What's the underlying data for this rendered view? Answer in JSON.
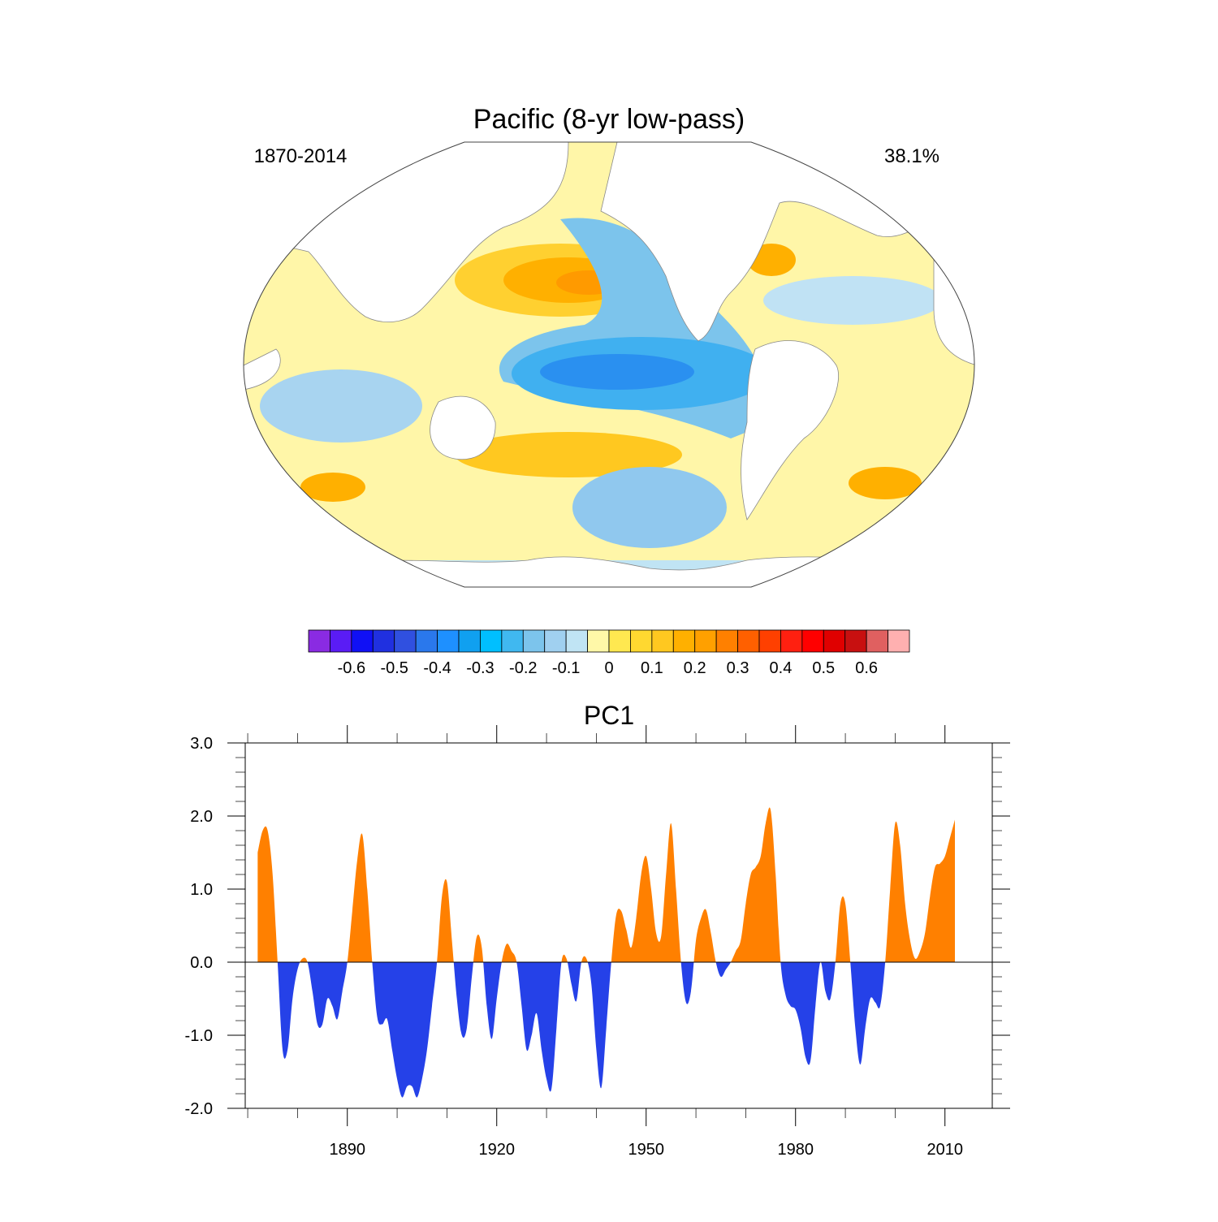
{
  "chart_data": [
    {
      "type": "map",
      "title": "Pacific (8-yr low-pass)",
      "subtitle_left": "1870-2014",
      "subtitle_right": "38.1%",
      "colorbar": {
        "lim": [
          -0.7,
          0.7
        ],
        "colors": [
          "#8a2be2",
          "#5a1cf5",
          "#1010f5",
          "#2030e0",
          "#3050e0",
          "#2a78ec",
          "#1e90ff",
          "#10a0f0",
          "#00bfff",
          "#40b8f0",
          "#7cc4ec",
          "#a0d0f0",
          "#c0e4f4",
          "#fff8a8",
          "#ffe850",
          "#ffd830",
          "#ffc820",
          "#ffb000",
          "#ffa000",
          "#ff8000",
          "#ff6000",
          "#ff4000",
          "#ff2010",
          "#ff0000",
          "#e00000",
          "#c81010",
          "#e06060",
          "#ffb0b0"
        ],
        "ticks": [
          -0.6,
          -0.5,
          -0.4,
          -0.3,
          -0.2,
          -0.1,
          0,
          0.1,
          0.2,
          0.3,
          0.4,
          0.5,
          0.6
        ]
      }
    },
    {
      "type": "area",
      "title": "PC1",
      "color_above": "#ff8000",
      "color_below": "#2541e8",
      "xlim": [
        1869.5,
        2019.5
      ],
      "ylim": [
        -2,
        3
      ],
      "xticks": [
        1890,
        1920,
        1950,
        1980,
        2010
      ],
      "xticks_minor": [
        1870,
        1880,
        1900,
        1910,
        1930,
        1940,
        1960,
        1970,
        1990,
        2000
      ],
      "yticks": [
        {
          "value": -2,
          "label": "-2.0"
        },
        {
          "value": -1,
          "label": "-1.0"
        },
        {
          "value": 0,
          "label": "0.0"
        },
        {
          "value": 1,
          "label": "1.0"
        },
        {
          "value": 2,
          "label": "2.0"
        },
        {
          "value": 3,
          "label": "3.0"
        }
      ],
      "yticks_minor": [
        -1.8,
        -1.6,
        -1.4,
        -1.2,
        -0.8,
        -0.6,
        -0.4,
        -0.2,
        0.2,
        0.4,
        0.6,
        0.8,
        1.2,
        1.4,
        1.6,
        1.8,
        2.2,
        2.4,
        2.6,
        2.8
      ],
      "x": [
        1872,
        1873,
        1874,
        1875,
        1876,
        1877,
        1878,
        1879,
        1880,
        1881,
        1882,
        1883,
        1884,
        1885,
        1886,
        1887,
        1888,
        1889,
        1890,
        1891,
        1892,
        1893,
        1894,
        1895,
        1896,
        1897,
        1898,
        1899,
        1900,
        1901,
        1902,
        1903,
        1904,
        1905,
        1906,
        1907,
        1908,
        1909,
        1910,
        1911,
        1912,
        1913,
        1914,
        1915,
        1916,
        1917,
        1918,
        1919,
        1920,
        1921,
        1922,
        1923,
        1924,
        1925,
        1926,
        1927,
        1928,
        1929,
        1930,
        1931,
        1932,
        1933,
        1934,
        1935,
        1936,
        1937,
        1938,
        1939,
        1940,
        1941,
        1942,
        1943,
        1944,
        1945,
        1946,
        1947,
        1948,
        1949,
        1950,
        1951,
        1952,
        1953,
        1954,
        1955,
        1956,
        1957,
        1958,
        1959,
        1960,
        1961,
        1962,
        1963,
        1964,
        1965,
        1966,
        1967,
        1968,
        1969,
        1970,
        1971,
        1972,
        1973,
        1974,
        1975,
        1976,
        1977,
        1978,
        1979,
        1980,
        1981,
        1982,
        1983,
        1984,
        1985,
        1986,
        1987,
        1988,
        1989,
        1990,
        1991,
        1992,
        1993,
        1994,
        1995,
        1996,
        1997,
        1998,
        1999,
        2000,
        2001,
        2002,
        2003,
        2004,
        2005,
        2006,
        2007,
        2008,
        2009,
        2010,
        2011,
        2012
      ],
      "values": [
        1.5,
        1.8,
        1.8,
        1.2,
        0.0,
        -1.2,
        -1.2,
        -0.5,
        -0.1,
        0.05,
        0.0,
        -0.4,
        -0.85,
        -0.85,
        -0.5,
        -0.6,
        -0.78,
        -0.4,
        0.0,
        0.7,
        1.4,
        1.75,
        1.0,
        0.0,
        -0.75,
        -0.85,
        -0.78,
        -1.2,
        -1.6,
        -1.85,
        -1.7,
        -1.7,
        -1.85,
        -1.6,
        -1.2,
        -0.6,
        0.0,
        0.9,
        1.1,
        0.3,
        -0.5,
        -1.0,
        -0.9,
        -0.2,
        0.35,
        0.2,
        -0.6,
        -1.05,
        -0.5,
        0.0,
        0.25,
        0.15,
        0.0,
        -0.6,
        -1.2,
        -1.0,
        -0.7,
        -1.2,
        -1.6,
        -1.73,
        -0.9,
        0.0,
        0.05,
        -0.3,
        -0.53,
        0.0,
        0.05,
        -0.3,
        -1.2,
        -1.72,
        -0.9,
        0.0,
        0.65,
        0.7,
        0.45,
        0.2,
        0.6,
        1.2,
        1.45,
        1.0,
        0.4,
        0.35,
        1.2,
        1.9,
        1.0,
        0.0,
        -0.55,
        -0.4,
        0.3,
        0.6,
        0.72,
        0.4,
        0.0,
        -0.2,
        -0.1,
        0.0,
        0.15,
        0.3,
        0.8,
        1.2,
        1.3,
        1.45,
        1.9,
        2.08,
        1.2,
        0.0,
        -0.45,
        -0.6,
        -0.65,
        -0.9,
        -1.3,
        -1.35,
        -0.6,
        0.0,
        -0.4,
        -0.5,
        0.0,
        0.8,
        0.8,
        0.0,
        -0.9,
        -1.4,
        -0.9,
        -0.5,
        -0.55,
        -0.6,
        0.0,
        1.0,
        1.9,
        1.6,
        0.8,
        0.3,
        0.05,
        0.15,
        0.4,
        0.9,
        1.3,
        1.35,
        1.45,
        1.7,
        1.95
      ]
    }
  ]
}
